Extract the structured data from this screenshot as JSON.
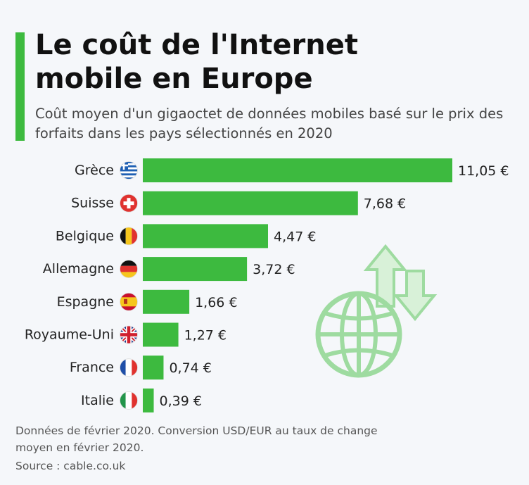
{
  "title": "Le coût de l'Internet mobile en Europe",
  "subtitle": "Coût moyen d'un gigaoctet de données mobiles basé sur le prix des forfaits dans les pays sélectionnés en 2020",
  "footnote": "Données de février 2020. Conversion USD/EUR au taux de change moyen en février 2020.",
  "source": "Source : cable.co.uk",
  "colors": {
    "bar": "#3dba3f",
    "accent": "#3dba3f",
    "illustration": "#9edba0"
  },
  "chart_data": {
    "type": "bar",
    "orientation": "horizontal",
    "categories": [
      "Grèce",
      "Suisse",
      "Belgique",
      "Allemagne",
      "Espagne",
      "Royaume-Uni",
      "France",
      "Italie"
    ],
    "flags": [
      "greece-flag-icon",
      "switzerland-flag-icon",
      "belgium-flag-icon",
      "germany-flag-icon",
      "spain-flag-icon",
      "uk-flag-icon",
      "france-flag-icon",
      "italy-flag-icon"
    ],
    "values": [
      11.05,
      7.68,
      4.47,
      3.72,
      1.66,
      1.27,
      0.74,
      0.39
    ],
    "value_labels": [
      "11,05 €",
      "7,68 €",
      "4,47 €",
      "3,72 €",
      "1,66 €",
      "1,27 €",
      "0,74 €",
      "0,39 €"
    ],
    "unit": "€",
    "grid": false,
    "legend": "none"
  }
}
